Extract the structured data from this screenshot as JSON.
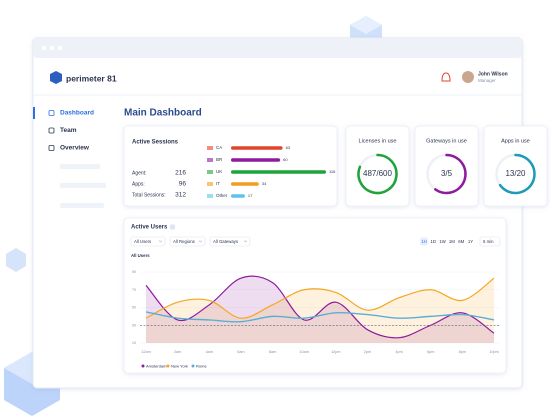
{
  "header": {
    "logo": "perimeter 81",
    "user_name": "John Wilson",
    "user_role": "Manager"
  },
  "sidebar": {
    "items": [
      "Dashboard",
      "Team",
      "Overview"
    ],
    "active": 0
  },
  "page_title": "Main Dashboard",
  "active_sessions": {
    "title": "Active Sessions",
    "stats": [
      {
        "label": "Agent:",
        "value": 216
      },
      {
        "label": "Apps:",
        "value": 96
      },
      {
        "label": "Total Sessions:",
        "value": 312
      }
    ],
    "countries": [
      {
        "code": "CA",
        "value": 63,
        "color": "#e0452b"
      },
      {
        "code": "BR",
        "value": 60,
        "color": "#8e1a9e"
      },
      {
        "code": "UK",
        "value": 116,
        "color": "#1fa33a"
      },
      {
        "code": "IT",
        "value": 34,
        "color": "#f39c1f"
      },
      {
        "code": "Other",
        "value": 17,
        "color": "#5cc4e8"
      }
    ]
  },
  "gauges": [
    {
      "title": "Licenses in use",
      "value_label": "487/600",
      "used": 487,
      "total": 600,
      "color": "#1fa33a"
    },
    {
      "title": "Gateways in use",
      "value_label": "3/5",
      "used": 3,
      "total": 5,
      "color": "#8e1a9e"
    },
    {
      "title": "Apps in use",
      "value_label": "13/20",
      "used": 13,
      "total": 20,
      "color": "#1c9ab8"
    }
  ],
  "active_users": {
    "title": "Active Users",
    "filters": [
      "All Users",
      "All Regions",
      "All Gateways"
    ],
    "ranges": [
      "1H",
      "1D",
      "1W",
      "1M",
      "6M",
      "1Y"
    ],
    "active_range": 0,
    "interval": "5 min",
    "y_label": "All Users",
    "categories": [
      "12am",
      "2am",
      "4am",
      "6am",
      "8am",
      "10am",
      "12pm",
      "2pm",
      "4pm",
      "6pm",
      "8pm",
      "10pm"
    ],
    "ylim": [
      10,
      90
    ],
    "yticks": [
      10,
      30,
      50,
      70,
      90
    ],
    "threshold": 30,
    "series": [
      {
        "name": "Amsterdam",
        "color": "#8e1a9e",
        "values": [
          75,
          36,
          53,
          83,
          78,
          36,
          56,
          25,
          16,
          30,
          44,
          21
        ]
      },
      {
        "name": "New York",
        "color": "#f5a623",
        "values": [
          38,
          56,
          58,
          38,
          53,
          70,
          67,
          47,
          61,
          70,
          58,
          83
        ]
      },
      {
        "name": "Rome",
        "color": "#5aaed6",
        "values": [
          45,
          38,
          36,
          34,
          40,
          38,
          44,
          42,
          38,
          40,
          42,
          36
        ]
      }
    ]
  }
}
